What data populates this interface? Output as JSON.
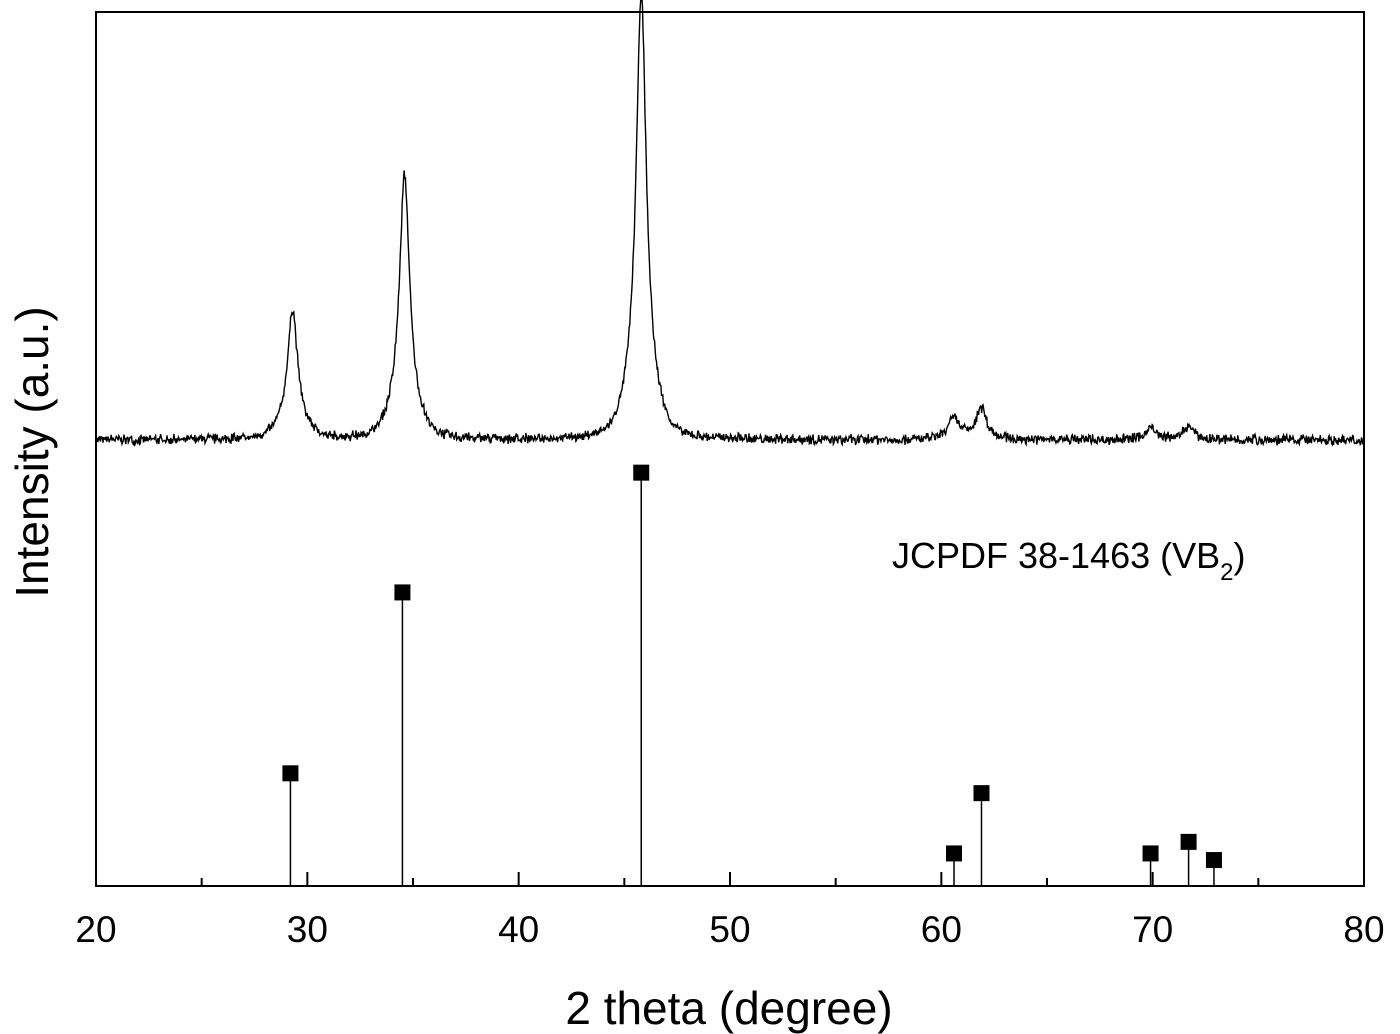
{
  "chart_data": {
    "type": "line",
    "title": "",
    "xlabel": "2 theta (degree)",
    "ylabel": "Intensity (a.u.)",
    "xlim": [
      20,
      80
    ],
    "x_ticks": [
      "20",
      "30",
      "40",
      "50",
      "60",
      "70",
      "80"
    ],
    "y_ticks": "none",
    "grid": false,
    "legend": "none",
    "annotation": {
      "prefix": "JCPDF 38-1463 (VB",
      "subscript": "2",
      "suffix": ")"
    },
    "series": [
      {
        "type": "line",
        "color": "#000000",
        "baseline": 0.52,
        "peaks": [
          {
            "x": 29.3,
            "height": 1.35
          },
          {
            "x": 34.6,
            "height": 2.75
          },
          {
            "x": 45.8,
            "height": 4.65
          },
          {
            "x": 60.6,
            "height": 0.22
          },
          {
            "x": 61.9,
            "height": 0.32
          },
          {
            "x": 69.9,
            "height": 0.12
          },
          {
            "x": 71.7,
            "height": 0.14
          }
        ]
      },
      {
        "type": "stem",
        "marker": "square",
        "color": "#000000",
        "x": [
          29.2,
          34.5,
          45.8,
          60.6,
          61.9,
          69.9,
          71.7,
          72.9
        ],
        "y": [
          13.4,
          35.3,
          49.8,
          3.7,
          11.0,
          3.7,
          5.1,
          2.9
        ]
      }
    ]
  }
}
